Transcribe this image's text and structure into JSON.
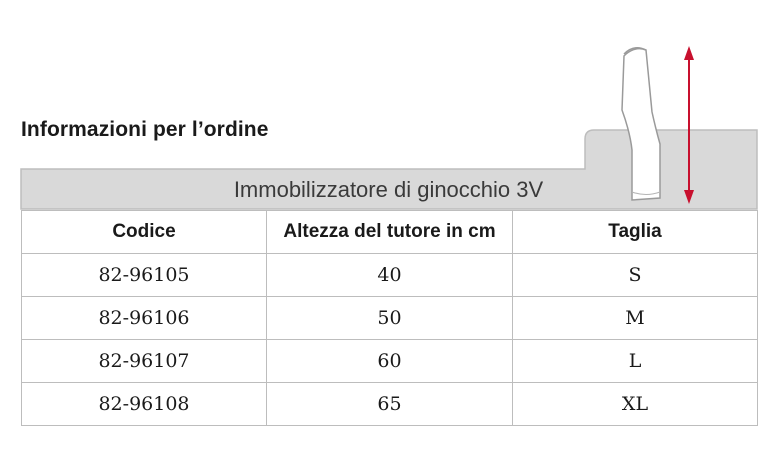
{
  "title": "Informazioni per l’ordine",
  "product_name": "Immobilizzatore di ginocchio 3V",
  "table": {
    "headers": [
      "Codice",
      "Altezza del tutore in cm",
      "Taglia"
    ],
    "rows": [
      [
        "82-96105",
        "40",
        "S"
      ],
      [
        "82-96106",
        "50",
        "M"
      ],
      [
        "82-96107",
        "60",
        "L"
      ],
      [
        "82-96108",
        "65",
        "XL"
      ]
    ]
  },
  "colors": {
    "header_band": "#d9d9d9",
    "border": "#bdbdbd",
    "arrow": "#c8102e"
  },
  "icons": {
    "illustration": "knee-brace-icon",
    "measure": "height-measure-arrow-icon"
  }
}
